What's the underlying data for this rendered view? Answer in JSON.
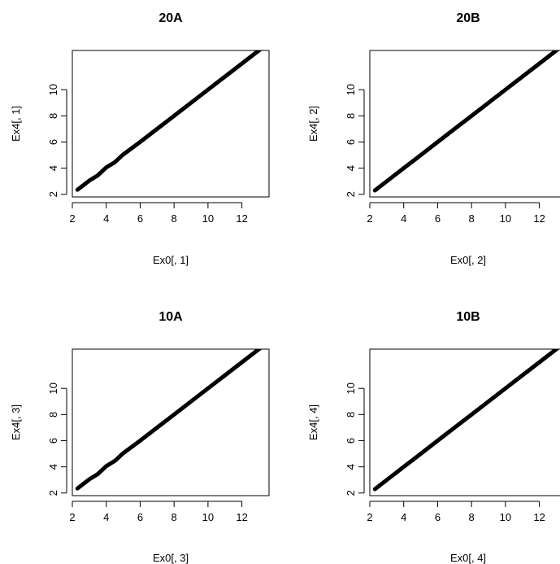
{
  "chart_data": [
    {
      "type": "scatter",
      "title": "20A",
      "xlabel": "Ex0[, 1]",
      "ylabel": "Ex4[, 1]",
      "xlim": [
        2.0,
        13.6
      ],
      "ylim": [
        1.8,
        13.0
      ],
      "xticks": [
        2,
        4,
        6,
        8,
        10,
        12
      ],
      "yticks": [
        2,
        4,
        6,
        8,
        10
      ],
      "series": [
        {
          "points": [
            [
              2.3,
              2.35
            ],
            [
              3.0,
              3.05
            ],
            [
              3.5,
              3.45
            ],
            [
              4.0,
              4.05
            ],
            [
              4.5,
              4.45
            ],
            [
              5.0,
              5.05
            ],
            [
              6.0,
              6.0
            ],
            [
              7.0,
              7.0
            ],
            [
              8.0,
              8.0
            ],
            [
              9.0,
              9.0
            ],
            [
              10.0,
              10.0
            ],
            [
              11.0,
              11.0
            ],
            [
              12.0,
              12.0
            ],
            [
              13.0,
              13.0
            ],
            [
              13.5,
              13.5
            ]
          ]
        }
      ]
    },
    {
      "type": "scatter",
      "title": "20B",
      "xlabel": "Ex0[, 2]",
      "ylabel": "Ex4[, 2]",
      "xlim": [
        2.0,
        13.6
      ],
      "ylim": [
        1.8,
        13.0
      ],
      "xticks": [
        2,
        4,
        6,
        8,
        10,
        12
      ],
      "yticks": [
        2,
        4,
        6,
        8,
        10
      ],
      "series": [
        {
          "points": [
            [
              2.3,
              2.3
            ],
            [
              3.0,
              3.0
            ],
            [
              3.5,
              3.5
            ],
            [
              4.0,
              4.0
            ],
            [
              4.5,
              4.5
            ],
            [
              5.0,
              5.0
            ],
            [
              6.0,
              6.0
            ],
            [
              7.0,
              7.0
            ],
            [
              8.0,
              8.0
            ],
            [
              9.0,
              9.0
            ],
            [
              10.0,
              10.0
            ],
            [
              11.0,
              11.0
            ],
            [
              12.0,
              12.0
            ],
            [
              13.0,
              13.0
            ],
            [
              13.5,
              13.5
            ]
          ]
        }
      ]
    },
    {
      "type": "scatter",
      "title": "10A",
      "xlabel": "Ex0[, 3]",
      "ylabel": "Ex4[, 3]",
      "xlim": [
        2.0,
        13.6
      ],
      "ylim": [
        1.8,
        13.0
      ],
      "xticks": [
        2,
        4,
        6,
        8,
        10,
        12
      ],
      "yticks": [
        2,
        4,
        6,
        8,
        10
      ],
      "series": [
        {
          "points": [
            [
              2.3,
              2.35
            ],
            [
              3.0,
              3.05
            ],
            [
              3.5,
              3.45
            ],
            [
              4.0,
              4.05
            ],
            [
              4.5,
              4.45
            ],
            [
              5.0,
              5.05
            ],
            [
              6.0,
              6.0
            ],
            [
              7.0,
              7.0
            ],
            [
              8.0,
              8.0
            ],
            [
              9.0,
              9.0
            ],
            [
              10.0,
              10.0
            ],
            [
              11.0,
              11.0
            ],
            [
              12.0,
              12.0
            ],
            [
              13.0,
              13.0
            ],
            [
              13.5,
              13.5
            ]
          ]
        }
      ]
    },
    {
      "type": "scatter",
      "title": "10B",
      "xlabel": "Ex0[, 4]",
      "ylabel": "Ex4[, 4]",
      "xlim": [
        2.0,
        13.6
      ],
      "ylim": [
        1.8,
        13.0
      ],
      "xticks": [
        2,
        4,
        6,
        8,
        10,
        12
      ],
      "yticks": [
        2,
        4,
        6,
        8,
        10
      ],
      "series": [
        {
          "points": [
            [
              2.3,
              2.3
            ],
            [
              3.0,
              3.0
            ],
            [
              3.5,
              3.5
            ],
            [
              4.0,
              4.0
            ],
            [
              4.5,
              4.5
            ],
            [
              5.0,
              5.0
            ],
            [
              6.0,
              6.0
            ],
            [
              7.0,
              7.0
            ],
            [
              8.0,
              8.0
            ],
            [
              9.0,
              9.0
            ],
            [
              10.0,
              10.0
            ],
            [
              11.0,
              11.0
            ],
            [
              12.0,
              12.0
            ],
            [
              13.0,
              13.0
            ],
            [
              13.5,
              13.5
            ]
          ]
        }
      ]
    }
  ]
}
